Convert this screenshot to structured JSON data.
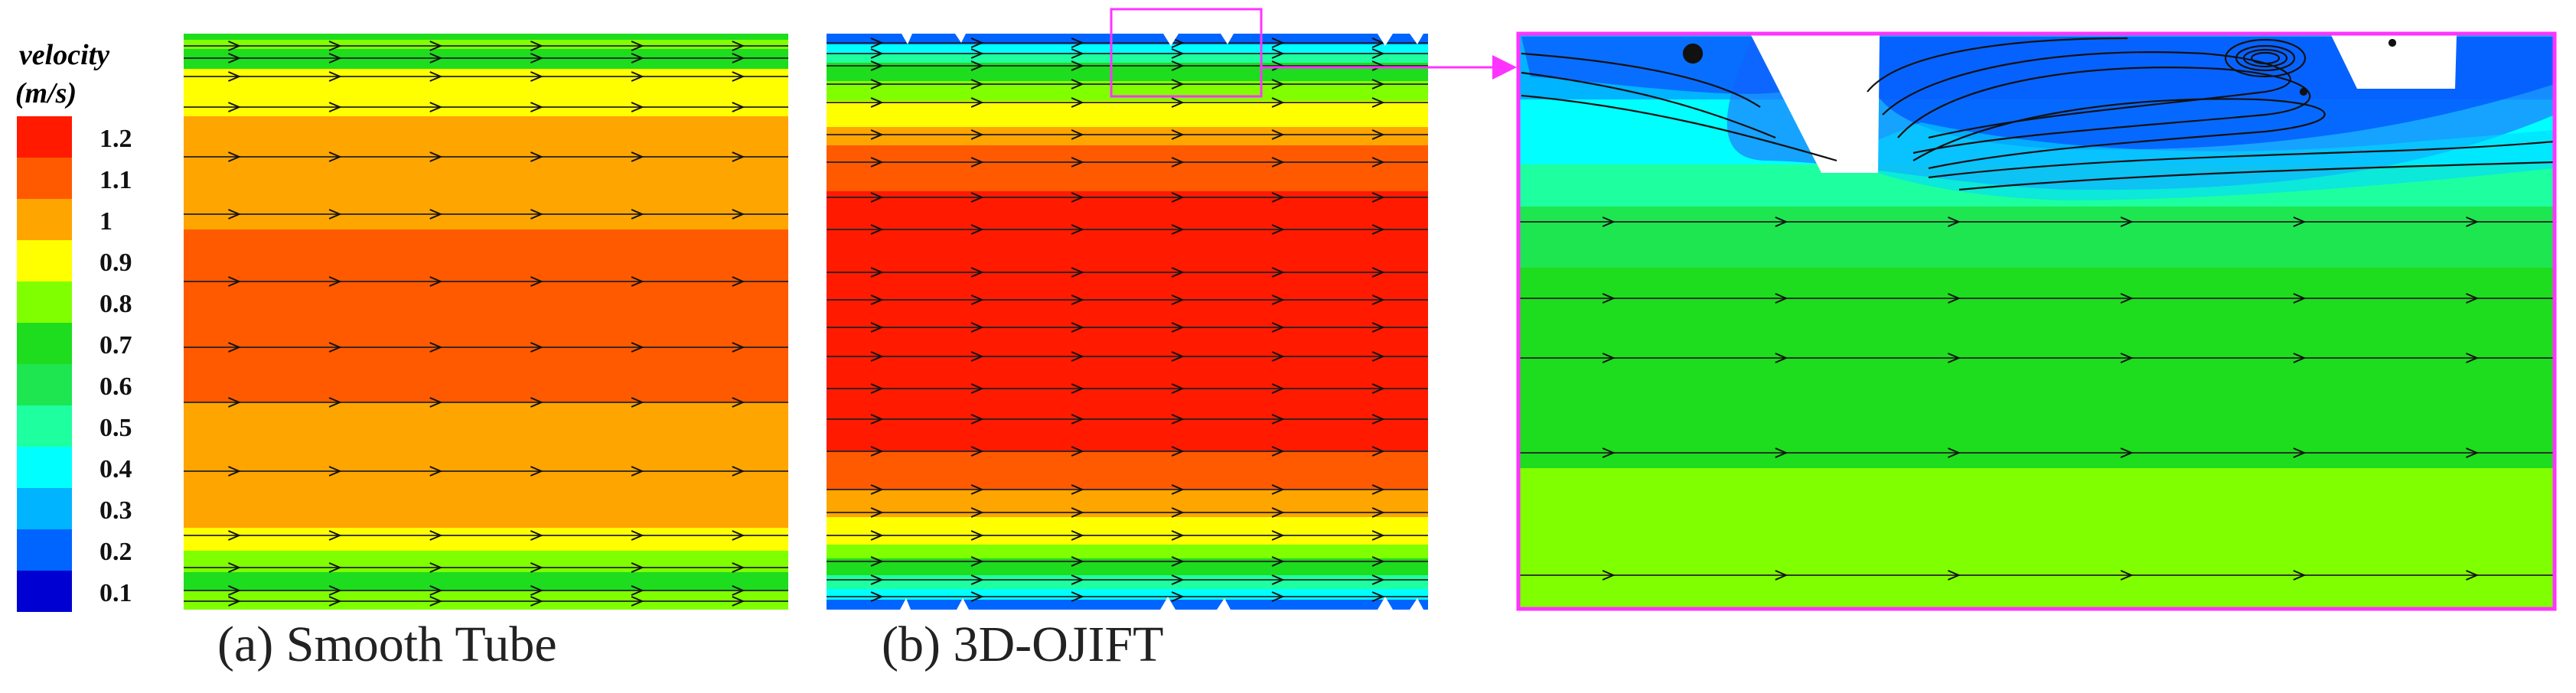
{
  "legend": {
    "title_line1": "velocity",
    "title_line2": "(m/s)",
    "ticks": [
      "1.2",
      "1.1",
      "1",
      "0.9",
      "0.8",
      "0.7",
      "0.6",
      "0.5",
      "0.4",
      "0.3",
      "0.2",
      "0.1"
    ],
    "colors": [
      "#ff1a00",
      "#ff5a00",
      "#ffa500",
      "#ffff00",
      "#80ff00",
      "#1edc1e",
      "#1ee650",
      "#1effa0",
      "#00ffff",
      "#00b4ff",
      "#0064ff",
      "#0000d2"
    ]
  },
  "panels": {
    "smooth_caption": "(a) Smooth Tube",
    "ojift_caption": "(b) 3D-OJIFT"
  }
}
